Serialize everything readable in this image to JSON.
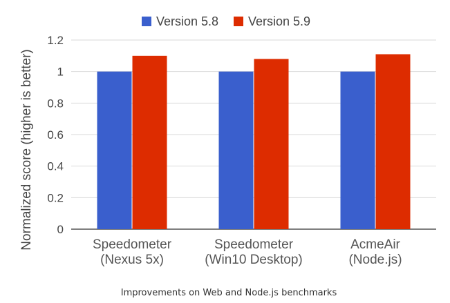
{
  "chart_data": {
    "type": "bar",
    "categories": [
      [
        "Speedometer",
        "(Nexus 5x)"
      ],
      [
        "Speedometer",
        "(Win10 Desktop)"
      ],
      [
        "AcmeAir",
        "(Node.js)"
      ]
    ],
    "series": [
      {
        "name": "Version 5.8",
        "color": "#3a5fcd",
        "values": [
          1.0,
          1.0,
          1.0
        ]
      },
      {
        "name": "Version 5.9",
        "color": "#dd2c00",
        "values": [
          1.1,
          1.08,
          1.11
        ]
      }
    ],
    "ylabel": "Normalized score (higher is better)",
    "xlabel": "",
    "ylim": [
      0,
      1.2
    ],
    "yticks": [
      "0",
      "0.2",
      "0.4",
      "0.6",
      "0.8",
      "1",
      "1.2"
    ],
    "grid": true,
    "legend_position": "top-center",
    "caption": "Improvements on Web and Node.js benchmarks"
  }
}
